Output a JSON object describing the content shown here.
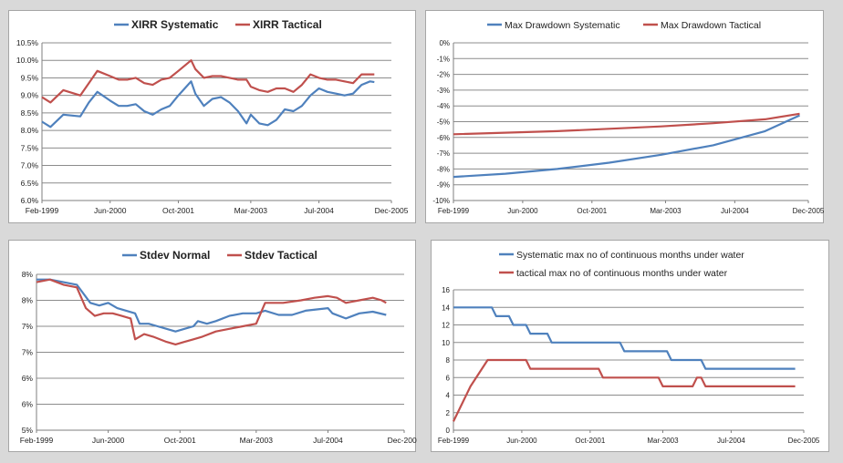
{
  "colors": {
    "systematic": "#4f81bd",
    "tactical": "#c0504d",
    "grid": "#8c8c8c",
    "axis": "#7f7f7f"
  },
  "x_tick_labels": [
    "Feb-1999",
    "Jun-2000",
    "Oct-2001",
    "Mar-2003",
    "Jul-2004",
    "Dec-2005"
  ],
  "chart_data": [
    {
      "type": "line",
      "title": "",
      "legend_position": "top",
      "x": [
        "Feb-1999",
        "Jun-2000",
        "Oct-2001",
        "Mar-2003",
        "Jul-2004",
        "Dec-2005"
      ],
      "xlim": [
        "Feb-1999",
        "Dec-2005"
      ],
      "ylim": [
        6.0,
        10.5
      ],
      "y_step": 0.5,
      "y_format": "percent1",
      "grid": true,
      "series": [
        {
          "name": "XIRR Systematic",
          "color": "#4f81bd",
          "points": [
            [
              "Feb-1999",
              8.25
            ],
            [
              "Apr-1999",
              8.1
            ],
            [
              "Jul-1999",
              8.45
            ],
            [
              "Nov-1999",
              8.4
            ],
            [
              "Jan-2000",
              8.8
            ],
            [
              "Mar-2000",
              9.1
            ],
            [
              "Jun-2000",
              8.85
            ],
            [
              "Aug-2000",
              8.7
            ],
            [
              "Oct-2000",
              8.7
            ],
            [
              "Dec-2000",
              8.75
            ],
            [
              "Feb-2001",
              8.55
            ],
            [
              "Apr-2001",
              8.45
            ],
            [
              "Jun-2001",
              8.6
            ],
            [
              "Aug-2001",
              8.7
            ],
            [
              "Oct-2001",
              9.0
            ],
            [
              "Jan-2002",
              9.4
            ],
            [
              "Feb-2002",
              9.05
            ],
            [
              "Apr-2002",
              8.7
            ],
            [
              "Jun-2002",
              8.9
            ],
            [
              "Aug-2002",
              8.95
            ],
            [
              "Oct-2002",
              8.8
            ],
            [
              "Dec-2002",
              8.55
            ],
            [
              "Feb-2003",
              8.2
            ],
            [
              "Mar-2003",
              8.45
            ],
            [
              "May-2003",
              8.2
            ],
            [
              "Jul-2003",
              8.15
            ],
            [
              "Sep-2003",
              8.3
            ],
            [
              "Nov-2003",
              8.6
            ],
            [
              "Jan-2004",
              8.55
            ],
            [
              "Mar-2004",
              8.7
            ],
            [
              "May-2004",
              9.0
            ],
            [
              "Jul-2004",
              9.2
            ],
            [
              "Sep-2004",
              9.1
            ],
            [
              "Nov-2004",
              9.05
            ],
            [
              "Jan-2005",
              9.0
            ],
            [
              "Mar-2005",
              9.05
            ],
            [
              "May-2005",
              9.3
            ],
            [
              "Jul-2005",
              9.4
            ],
            [
              "Aug-2005",
              9.38
            ]
          ]
        },
        {
          "name": "XIRR Tactical",
          "color": "#c0504d",
          "points": [
            [
              "Feb-1999",
              8.95
            ],
            [
              "Apr-1999",
              8.8
            ],
            [
              "Jul-1999",
              9.15
            ],
            [
              "Nov-1999",
              9.0
            ],
            [
              "Jan-2000",
              9.35
            ],
            [
              "Mar-2000",
              9.7
            ],
            [
              "Jun-2000",
              9.55
            ],
            [
              "Aug-2000",
              9.45
            ],
            [
              "Oct-2000",
              9.45
            ],
            [
              "Dec-2000",
              9.5
            ],
            [
              "Feb-2001",
              9.35
            ],
            [
              "Apr-2001",
              9.3
            ],
            [
              "Jun-2001",
              9.45
            ],
            [
              "Aug-2001",
              9.5
            ],
            [
              "Oct-2001",
              9.7
            ],
            [
              "Jan-2002",
              10.0
            ],
            [
              "Feb-2002",
              9.75
            ],
            [
              "Apr-2002",
              9.5
            ],
            [
              "Jun-2002",
              9.55
            ],
            [
              "Aug-2002",
              9.55
            ],
            [
              "Oct-2002",
              9.5
            ],
            [
              "Dec-2002",
              9.45
            ],
            [
              "Feb-2003",
              9.45
            ],
            [
              "Mar-2003",
              9.25
            ],
            [
              "May-2003",
              9.15
            ],
            [
              "Jul-2003",
              9.1
            ],
            [
              "Sep-2003",
              9.2
            ],
            [
              "Nov-2003",
              9.2
            ],
            [
              "Jan-2004",
              9.1
            ],
            [
              "Mar-2004",
              9.3
            ],
            [
              "May-2004",
              9.6
            ],
            [
              "Jul-2004",
              9.5
            ],
            [
              "Sep-2004",
              9.45
            ],
            [
              "Nov-2004",
              9.45
            ],
            [
              "Jan-2005",
              9.4
            ],
            [
              "Mar-2005",
              9.35
            ],
            [
              "May-2005",
              9.6
            ],
            [
              "Jul-2005",
              9.6
            ],
            [
              "Aug-2005",
              9.6
            ]
          ]
        }
      ]
    },
    {
      "type": "line",
      "title": "",
      "legend_position": "top",
      "x": [
        "Feb-1999",
        "Jun-2000",
        "Oct-2001",
        "Mar-2003",
        "Jul-2004",
        "Dec-2005"
      ],
      "xlim": [
        "Feb-1999",
        "Dec-2005"
      ],
      "ylim": [
        -10,
        0
      ],
      "y_step": 1,
      "y_format": "percent0",
      "grid": true,
      "series": [
        {
          "name": "Max Drawdown Systematic",
          "color": "#4f81bd",
          "points": [
            [
              "Feb-1999",
              -8.5
            ],
            [
              "Feb-2000",
              -8.3
            ],
            [
              "Feb-2001",
              -8.0
            ],
            [
              "Feb-2002",
              -7.6
            ],
            [
              "Feb-2003",
              -7.1
            ],
            [
              "Feb-2004",
              -6.5
            ],
            [
              "Feb-2005",
              -5.6
            ],
            [
              "Oct-2005",
              -4.6
            ]
          ]
        },
        {
          "name": "Max Drawdown Tactical",
          "color": "#c0504d",
          "points": [
            [
              "Feb-1999",
              -5.8
            ],
            [
              "Feb-2001",
              -5.6
            ],
            [
              "Feb-2003",
              -5.3
            ],
            [
              "Feb-2004",
              -5.1
            ],
            [
              "Feb-2005",
              -4.85
            ],
            [
              "Oct-2005",
              -4.5
            ]
          ]
        }
      ]
    },
    {
      "type": "line",
      "title": "",
      "legend_position": "top",
      "x": [
        "Feb-1999",
        "Jun-2000",
        "Oct-2001",
        "Mar-2003",
        "Jul-2004",
        "Dec-2005"
      ],
      "xlim": [
        "Feb-1999",
        "Dec-2005"
      ],
      "ylim": [
        5,
        8
      ],
      "y_step": 0.5,
      "y_tick_labels": [
        "5%",
        "6%",
        "6%",
        "7%",
        "7%",
        "8%",
        "8%"
      ],
      "grid": true,
      "series": [
        {
          "name": "Stdev Normal",
          "color": "#4f81bd",
          "points": [
            [
              "Feb-1999",
              7.9
            ],
            [
              "May-1999",
              7.9
            ],
            [
              "Aug-1999",
              7.85
            ],
            [
              "Nov-1999",
              7.8
            ],
            [
              "Feb-2000",
              7.45
            ],
            [
              "Apr-2000",
              7.4
            ],
            [
              "Jun-2000",
              7.45
            ],
            [
              "Aug-2000",
              7.35
            ],
            [
              "Oct-2000",
              7.3
            ],
            [
              "Dec-2000",
              7.25
            ],
            [
              "Jan-2001",
              7.05
            ],
            [
              "Mar-2001",
              7.05
            ],
            [
              "May-2001",
              7.0
            ],
            [
              "Jul-2001",
              6.95
            ],
            [
              "Sep-2001",
              6.9
            ],
            [
              "Nov-2001",
              6.95
            ],
            [
              "Jan-2002",
              7.0
            ],
            [
              "Feb-2002",
              7.1
            ],
            [
              "Apr-2002",
              7.05
            ],
            [
              "Jun-2002",
              7.1
            ],
            [
              "Sep-2002",
              7.2
            ],
            [
              "Dec-2002",
              7.25
            ],
            [
              "Mar-2003",
              7.25
            ],
            [
              "May-2003",
              7.3
            ],
            [
              "Aug-2003",
              7.22
            ],
            [
              "Nov-2003",
              7.22
            ],
            [
              "Feb-2004",
              7.3
            ],
            [
              "Jul-2004",
              7.35
            ],
            [
              "Aug-2004",
              7.25
            ],
            [
              "Nov-2004",
              7.15
            ],
            [
              "Feb-2005",
              7.25
            ],
            [
              "May-2005",
              7.28
            ],
            [
              "Aug-2005",
              7.22
            ]
          ]
        },
        {
          "name": "Stdev Tactical",
          "color": "#c0504d",
          "points": [
            [
              "Feb-1999",
              7.85
            ],
            [
              "May-1999",
              7.9
            ],
            [
              "Aug-1999",
              7.8
            ],
            [
              "Nov-1999",
              7.75
            ],
            [
              "Jan-2000",
              7.35
            ],
            [
              "Mar-2000",
              7.2
            ],
            [
              "May-2000",
              7.25
            ],
            [
              "Jul-2000",
              7.25
            ],
            [
              "Sep-2000",
              7.2
            ],
            [
              "Nov-2000",
              7.15
            ],
            [
              "Dec-2000",
              6.75
            ],
            [
              "Feb-2001",
              6.85
            ],
            [
              "Apr-2001",
              6.8
            ],
            [
              "Jul-2001",
              6.7
            ],
            [
              "Sep-2001",
              6.65
            ],
            [
              "Nov-2001",
              6.7
            ],
            [
              "Jan-2002",
              6.75
            ],
            [
              "Mar-2002",
              6.8
            ],
            [
              "Jun-2002",
              6.9
            ],
            [
              "Sep-2002",
              6.95
            ],
            [
              "Dec-2002",
              7.0
            ],
            [
              "Mar-2003",
              7.05
            ],
            [
              "May-2003",
              7.45
            ],
            [
              "Sep-2003",
              7.45
            ],
            [
              "Jan-2004",
              7.5
            ],
            [
              "Apr-2004",
              7.55
            ],
            [
              "Jul-2004",
              7.58
            ],
            [
              "Sep-2004",
              7.55
            ],
            [
              "Nov-2004",
              7.45
            ],
            [
              "Feb-2005",
              7.5
            ],
            [
              "May-2005",
              7.55
            ],
            [
              "Jul-2005",
              7.5
            ],
            [
              "Aug-2005",
              7.45
            ]
          ]
        }
      ]
    },
    {
      "type": "line",
      "title": "",
      "legend_position": "top",
      "x": [
        "Feb-1999",
        "Jun-2000",
        "Oct-2001",
        "Mar-2003",
        "Jul-2004",
        "Dec-2005"
      ],
      "xlim": [
        "Feb-1999",
        "Dec-2005"
      ],
      "ylim": [
        0,
        16
      ],
      "y_step": 2,
      "y_format": "int",
      "grid": true,
      "series": [
        {
          "name": "Systematic max no of continuous months under water",
          "color": "#4f81bd",
          "points": [
            [
              "Feb-1999",
              14
            ],
            [
              "Nov-1999",
              14
            ],
            [
              "Dec-1999",
              13
            ],
            [
              "Mar-2000",
              13
            ],
            [
              "Apr-2000",
              12
            ],
            [
              "Jul-2000",
              12
            ],
            [
              "Aug-2000",
              11
            ],
            [
              "Dec-2000",
              11
            ],
            [
              "Jan-2001",
              10
            ],
            [
              "May-2002",
              10
            ],
            [
              "Jun-2002",
              9
            ],
            [
              "Apr-2003",
              9
            ],
            [
              "May-2003",
              8
            ],
            [
              "Dec-2003",
              8
            ],
            [
              "Jan-2004",
              7
            ],
            [
              "Oct-2005",
              7
            ]
          ]
        },
        {
          "name": "tactical max no of continuous months under water",
          "color": "#c0504d",
          "points": [
            [
              "Feb-1999",
              1
            ],
            [
              "Jun-1999",
              5
            ],
            [
              "Oct-1999",
              8
            ],
            [
              "Jul-2000",
              8
            ],
            [
              "Aug-2000",
              7
            ],
            [
              "Dec-2001",
              7
            ],
            [
              "Jan-2002",
              6
            ],
            [
              "Feb-2003",
              6
            ],
            [
              "Mar-2003",
              5
            ],
            [
              "Oct-2003",
              5
            ],
            [
              "Nov-2003",
              6
            ],
            [
              "Dec-2003",
              6
            ],
            [
              "Jan-2004",
              5
            ],
            [
              "Oct-2005",
              5
            ]
          ]
        }
      ]
    }
  ]
}
